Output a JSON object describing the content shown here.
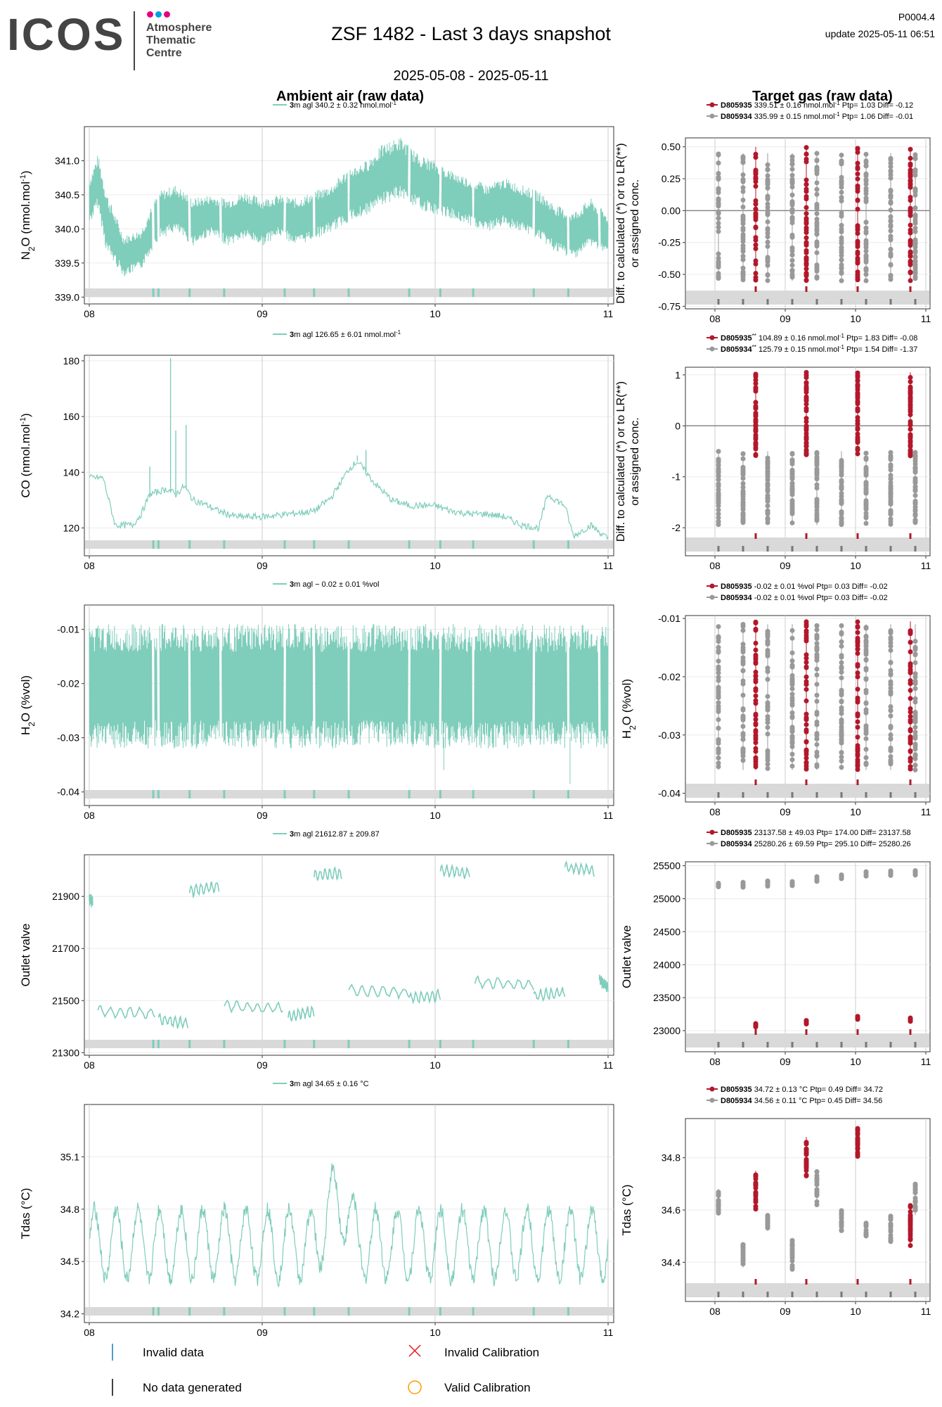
{
  "header": {
    "logo_text": "ICOS",
    "logo_subtitle": [
      "Atmosphere",
      "Thematic",
      "Centre"
    ],
    "logo_dot_colors": [
      "#e6007e",
      "#009fe3",
      "#e6007e"
    ],
    "title": "ZSF 1482 - Last 3 days snapshot",
    "date_range": "2025-05-08 - 2025-05-11",
    "code": "P0004.4",
    "update": "update  2025-05-11 06:51"
  },
  "colors": {
    "ambient": "#7fcdbb",
    "target_red": "#b2182b",
    "target_grey": "#999999",
    "flag_band": "#d9d9d9",
    "invalid_data": "#1f78b4",
    "invalid_calibration": "#e41a1c",
    "valid_calibration": "#ff9900"
  },
  "column_titles": {
    "left": "Ambient air (raw data)",
    "right": "Target gas (raw data)"
  },
  "legend_bottom": {
    "invalid_data": "Invalid data",
    "no_data": "No data generated",
    "invalid_calibration": "Invalid Calibration",
    "valid_calibration": "Valid Calibration"
  },
  "chart_data": [
    {
      "id": "n2o-ambient",
      "type": "line",
      "ylabel": "N2O (nmol.mol-1)",
      "legend": {
        "bold": "3",
        "text": "m agl 340.2 ± 0.32 nmol.mol",
        "sup": "-1"
      },
      "xticks": [
        "08",
        "09",
        "10",
        "11"
      ],
      "yticks": [
        339.0,
        339.5,
        340.0,
        340.5,
        341.0
      ],
      "ylim": [
        338.9,
        341.5
      ],
      "series": [
        {
          "x_days": [
            0.0,
            0.05,
            0.1,
            0.2,
            0.3,
            0.4,
            0.5,
            0.6,
            0.7,
            0.8,
            0.9,
            1.0,
            1.1,
            1.2,
            1.3,
            1.4,
            1.5,
            1.6,
            1.7,
            1.8,
            1.9,
            2.0,
            2.1,
            2.2,
            2.3,
            2.4,
            2.5,
            2.6,
            2.7,
            2.8,
            2.9,
            3.0
          ],
          "mid": [
            340.4,
            340.7,
            340.1,
            339.6,
            339.7,
            340.2,
            340.3,
            340.1,
            340.2,
            340.1,
            340.2,
            340.1,
            340.2,
            340.1,
            340.2,
            340.3,
            340.5,
            340.6,
            340.8,
            340.9,
            340.7,
            340.6,
            340.5,
            340.4,
            340.3,
            340.4,
            340.3,
            340.2,
            340.0,
            339.9,
            340.1,
            339.9
          ],
          "spread": [
            0.35,
            0.4,
            0.45,
            0.3,
            0.3,
            0.35,
            0.35,
            0.35,
            0.3,
            0.35,
            0.35,
            0.35,
            0.3,
            0.35,
            0.35,
            0.35,
            0.4,
            0.4,
            0.45,
            0.45,
            0.4,
            0.4,
            0.35,
            0.35,
            0.35,
            0.35,
            0.35,
            0.35,
            0.35,
            0.35,
            0.35,
            0.3
          ]
        }
      ]
    },
    {
      "id": "n2o-target",
      "type": "scatter",
      "ylabel": "Diff. to calculated (*) or to LR(**) or assigned conc.",
      "legend": [
        {
          "bold": "D805935",
          "text": " 339.51 ± 0.16 nmol.mol",
          "sup": "-1",
          "tail": " Ptp= 1.03 Diff= -0.12"
        },
        {
          "bold": "D805934",
          "text": " 335.99 ± 0.15 nmol.mol",
          "sup": "-1",
          "tail": " Ptp= 1.06 Diff= -0.01"
        }
      ],
      "xticks": [
        "08",
        "09",
        "10",
        "11"
      ],
      "yticks": [
        -0.75,
        -0.5,
        -0.25,
        0.0,
        0.25,
        0.5
      ],
      "ylim": [
        -0.77,
        0.57
      ],
      "grey_x": [
        0.05,
        0.4,
        0.75,
        1.1,
        1.45,
        1.8,
        2.15,
        2.5,
        2.85
      ],
      "red_x": [
        0.58,
        1.3,
        2.03,
        2.78
      ],
      "range_grey": [
        -0.55,
        0.45
      ],
      "range_red": [
        -0.55,
        0.5
      ]
    },
    {
      "id": "co-ambient",
      "type": "line",
      "ylabel": "CO (nmol.mol-1)",
      "legend": {
        "bold": "3",
        "text": "m agl 126.65 ± 6.01 nmol.mol",
        "sup": "-1"
      },
      "xticks": [
        "08",
        "09",
        "10",
        "11"
      ],
      "yticks": [
        120,
        140,
        160,
        180
      ],
      "ylim": [
        110,
        182
      ],
      "series": [
        {
          "x_days": [
            0.0,
            0.08,
            0.15,
            0.25,
            0.3,
            0.35,
            0.4,
            0.45,
            0.5,
            0.55,
            0.6,
            0.65,
            0.75,
            0.85,
            1.0,
            1.15,
            1.3,
            1.4,
            1.5,
            1.55,
            1.65,
            1.75,
            1.85,
            2.0,
            2.1,
            2.2,
            2.3,
            2.4,
            2.5,
            2.6,
            2.65,
            2.75,
            2.8,
            2.9,
            3.0
          ],
          "y": [
            138,
            138,
            121,
            121,
            125,
            132,
            133,
            134,
            132,
            135,
            130,
            129,
            126,
            124,
            124,
            125,
            126,
            131,
            141,
            144,
            136,
            130,
            128,
            128,
            126,
            125,
            125,
            124,
            121,
            120,
            132,
            128,
            117,
            121,
            116
          ]
        }
      ],
      "spikes": [
        [
          0.47,
          181
        ],
        [
          0.56,
          157
        ],
        [
          0.5,
          155
        ],
        [
          1.6,
          148
        ],
        [
          0.35,
          142
        ],
        [
          1.55,
          146
        ]
      ]
    },
    {
      "id": "co-target",
      "type": "scatter",
      "ylabel": "Diff. to calculated (*) or to LR(**) or assigned conc.",
      "legend": [
        {
          "bold": "D805935",
          "extra": "**",
          "text": " 104.89 ± 0.16 nmol.mol",
          "sup": "-1",
          "tail": " Ptp= 1.83 Diff= -0.08"
        },
        {
          "bold": "D805934",
          "extra": "**",
          "text": " 125.79 ± 0.15 nmol.mol",
          "sup": "-1",
          "tail": " Ptp= 1.54 Diff= -1.37"
        }
      ],
      "xticks": [
        "08",
        "09",
        "10",
        "11"
      ],
      "yticks": [
        -2,
        -1,
        0,
        1
      ],
      "ylim": [
        -2.55,
        1.15
      ],
      "grey_x": [
        0.05,
        0.4,
        0.75,
        1.1,
        1.45,
        1.8,
        2.15,
        2.5,
        2.85
      ],
      "red_x": [
        0.58,
        1.3,
        2.03,
        2.78
      ],
      "range_grey": [
        -1.95,
        -0.5
      ],
      "range_red": [
        -0.6,
        1.05
      ]
    },
    {
      "id": "h2o-ambient",
      "type": "line",
      "ylabel": "H2O (%vol)",
      "legend": {
        "bold": "3",
        "text": "m agl − 0.02 ± 0.01 %vol",
        "sup": ""
      },
      "xticks": [
        "08",
        "09",
        "10",
        "11"
      ],
      "yticks": [
        -0.04,
        -0.03,
        -0.02,
        -0.01
      ],
      "ylim": [
        -0.0425,
        -0.0055
      ],
      "band": [
        -0.032,
        -0.009
      ]
    },
    {
      "id": "h2o-target",
      "type": "scatter",
      "ylabel": "H2O (%vol)",
      "legend": [
        {
          "bold": "D805935",
          "text": " -0.02 ± 0.01 %vol Ptp= 0.03 Diff= -0.02",
          "sup": "",
          "tail": ""
        },
        {
          "bold": "D805934",
          "text": " -0.02 ± 0.01 %vol Ptp= 0.03 Diff= -0.02",
          "sup": "",
          "tail": ""
        }
      ],
      "xticks": [
        "08",
        "09",
        "10",
        "11"
      ],
      "yticks": [
        -0.04,
        -0.03,
        -0.02,
        -0.01
      ],
      "ylim": [
        -0.0415,
        -0.0095
      ],
      "grey_x": [
        0.05,
        0.4,
        0.75,
        1.1,
        1.45,
        1.8,
        2.15,
        2.5,
        2.85
      ],
      "red_x": [
        0.58,
        1.3,
        2.03,
        2.78
      ],
      "range_grey": [
        -0.036,
        -0.011
      ],
      "range_red": [
        -0.036,
        -0.0105
      ]
    },
    {
      "id": "valve-ambient",
      "type": "line",
      "ylabel": "Outlet valve",
      "legend": {
        "bold": "3",
        "text": "m agl 21612.87 ± 209.87",
        "sup": ""
      },
      "xticks": [
        "08",
        "09",
        "10",
        "11"
      ],
      "yticks": [
        21300,
        21500,
        21700,
        21900
      ],
      "ylim": [
        21290,
        22060
      ],
      "segments": [
        [
          0.0,
          0.02,
          21890,
          21880
        ],
        [
          0.05,
          0.38,
          21460,
          21450
        ],
        [
          0.4,
          0.57,
          21430,
          21410
        ],
        [
          0.58,
          0.75,
          21920,
          21940
        ],
        [
          0.78,
          1.12,
          21480,
          21470
        ],
        [
          1.15,
          1.3,
          21440,
          21460
        ],
        [
          1.3,
          1.46,
          21980,
          21990
        ],
        [
          1.5,
          1.85,
          21540,
          21530
        ],
        [
          1.85,
          2.03,
          21510,
          21520
        ],
        [
          2.03,
          2.2,
          22000,
          21990
        ],
        [
          2.23,
          2.57,
          21570,
          21560
        ],
        [
          2.57,
          2.75,
          21520,
          21530
        ],
        [
          2.75,
          2.92,
          22010,
          22000
        ],
        [
          2.95,
          3.0,
          21580,
          21550
        ]
      ]
    },
    {
      "id": "valve-target",
      "type": "scatter",
      "ylabel": "Outlet valve",
      "legend": [
        {
          "bold": "D805935",
          "text": " 23137.58 ± 49.03  Ptp= 174.00 Diff= 23137.58",
          "sup": "",
          "tail": ""
        },
        {
          "bold": "D805934",
          "text": " 25280.26 ± 69.59  Ptp= 295.10 Diff= 25280.26",
          "sup": "",
          "tail": ""
        }
      ],
      "xticks": [
        "08",
        "09",
        "10",
        "11"
      ],
      "yticks": [
        23000,
        23500,
        24000,
        24500,
        25000,
        25500
      ],
      "ylim": [
        22680,
        25560
      ],
      "grey_x": [
        0.05,
        0.4,
        0.75,
        1.1,
        1.45,
        1.8,
        2.15,
        2.5,
        2.85
      ],
      "grey_y": [
        25220,
        25210,
        25230,
        25220,
        25300,
        25340,
        25380,
        25390,
        25390
      ],
      "red_x": [
        0.58,
        1.3,
        2.03,
        2.78
      ],
      "red_y": [
        23080,
        23130,
        23190,
        23170
      ]
    },
    {
      "id": "tdas-ambient",
      "type": "line",
      "ylabel": "Tdas (°C)",
      "legend": {
        "bold": "3",
        "text": "m agl 34.65 ± 0.16 °C",
        "sup": ""
      },
      "xticks": [
        "08",
        "09",
        "10",
        "11"
      ],
      "yticks": [
        34.2,
        34.5,
        34.8,
        35.1
      ],
      "ylim": [
        34.15,
        35.4
      ],
      "period_days": 0.125,
      "base": 34.6,
      "amp": 0.2
    },
    {
      "id": "tdas-target",
      "type": "scatter",
      "ylabel": "Tdas (°C)",
      "legend": [
        {
          "bold": "D805935",
          "text": " 34.72 ± 0.13 °C Ptp= 0.49 Diff= 34.72",
          "sup": "",
          "tail": ""
        },
        {
          "bold": "D805934",
          "text": " 34.56 ± 0.11 °C Ptp= 0.45 Diff= 34.56",
          "sup": "",
          "tail": ""
        }
      ],
      "xticks": [
        "08",
        "09",
        "10",
        "11"
      ],
      "yticks": [
        34.4,
        34.6,
        34.8
      ],
      "ylim": [
        34.25,
        34.95
      ],
      "grey_x": [
        0.05,
        0.4,
        0.75,
        1.1,
        1.45,
        1.8,
        2.15,
        2.5,
        2.85
      ],
      "grey_lo": [
        34.58,
        34.38,
        34.52,
        34.37,
        34.62,
        34.52,
        34.5,
        34.47,
        34.58
      ],
      "grey_hi": [
        34.68,
        34.47,
        34.58,
        34.49,
        34.75,
        34.6,
        34.55,
        34.58,
        34.7
      ],
      "red_x": [
        0.58,
        1.3,
        2.03,
        2.78
      ],
      "red_lo": [
        34.6,
        34.73,
        34.8,
        34.46
      ],
      "red_hi": [
        34.75,
        34.88,
        34.92,
        34.62
      ]
    }
  ]
}
